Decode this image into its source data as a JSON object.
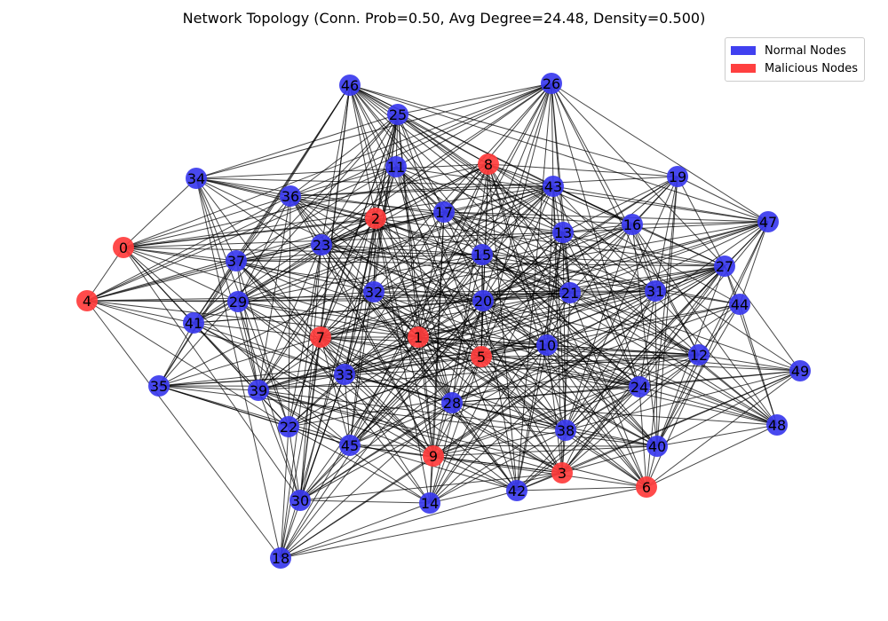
{
  "title": "Network Topology (Conn. Prob=0.50, Avg Degree=24.48, Density=0.500)",
  "legend": {
    "placement": "top-right",
    "items": [
      {
        "label": "Normal Nodes",
        "color": "#4040f0"
      },
      {
        "label": "Malicious Nodes",
        "color": "#ff4040"
      }
    ]
  },
  "colors": {
    "normal": "#3a3aee",
    "malicious": "#ff3c3c",
    "edge": "#000000"
  },
  "nodes": [
    {
      "id": 0,
      "type": "malicious"
    },
    {
      "id": 1,
      "type": "malicious"
    },
    {
      "id": 2,
      "type": "malicious"
    },
    {
      "id": 3,
      "type": "malicious"
    },
    {
      "id": 4,
      "type": "malicious"
    },
    {
      "id": 5,
      "type": "malicious"
    },
    {
      "id": 6,
      "type": "malicious"
    },
    {
      "id": 7,
      "type": "malicious"
    },
    {
      "id": 8,
      "type": "malicious"
    },
    {
      "id": 9,
      "type": "malicious"
    },
    {
      "id": 10,
      "type": "normal"
    },
    {
      "id": 11,
      "type": "normal"
    },
    {
      "id": 12,
      "type": "normal"
    },
    {
      "id": 13,
      "type": "normal"
    },
    {
      "id": 14,
      "type": "normal"
    },
    {
      "id": 15,
      "type": "normal"
    },
    {
      "id": 16,
      "type": "normal"
    },
    {
      "id": 17,
      "type": "normal"
    },
    {
      "id": 18,
      "type": "normal"
    },
    {
      "id": 19,
      "type": "normal"
    },
    {
      "id": 20,
      "type": "normal"
    },
    {
      "id": 21,
      "type": "normal"
    },
    {
      "id": 22,
      "type": "normal"
    },
    {
      "id": 23,
      "type": "normal"
    },
    {
      "id": 24,
      "type": "normal"
    },
    {
      "id": 25,
      "type": "normal"
    },
    {
      "id": 26,
      "type": "normal"
    },
    {
      "id": 27,
      "type": "normal"
    },
    {
      "id": 28,
      "type": "normal"
    },
    {
      "id": 29,
      "type": "normal"
    },
    {
      "id": 30,
      "type": "normal"
    },
    {
      "id": 31,
      "type": "normal"
    },
    {
      "id": 32,
      "type": "normal"
    },
    {
      "id": 33,
      "type": "normal"
    },
    {
      "id": 34,
      "type": "normal"
    },
    {
      "id": 35,
      "type": "normal"
    },
    {
      "id": 36,
      "type": "normal"
    },
    {
      "id": 37,
      "type": "normal"
    },
    {
      "id": 38,
      "type": "normal"
    },
    {
      "id": 39,
      "type": "normal"
    },
    {
      "id": 40,
      "type": "normal"
    },
    {
      "id": 41,
      "type": "normal"
    },
    {
      "id": 42,
      "type": "normal"
    },
    {
      "id": 43,
      "type": "normal"
    },
    {
      "id": 44,
      "type": "normal"
    },
    {
      "id": 45,
      "type": "normal"
    },
    {
      "id": 46,
      "type": "normal"
    },
    {
      "id": 47,
      "type": "normal"
    },
    {
      "id": 48,
      "type": "normal"
    },
    {
      "id": 49,
      "type": "normal"
    }
  ]
}
